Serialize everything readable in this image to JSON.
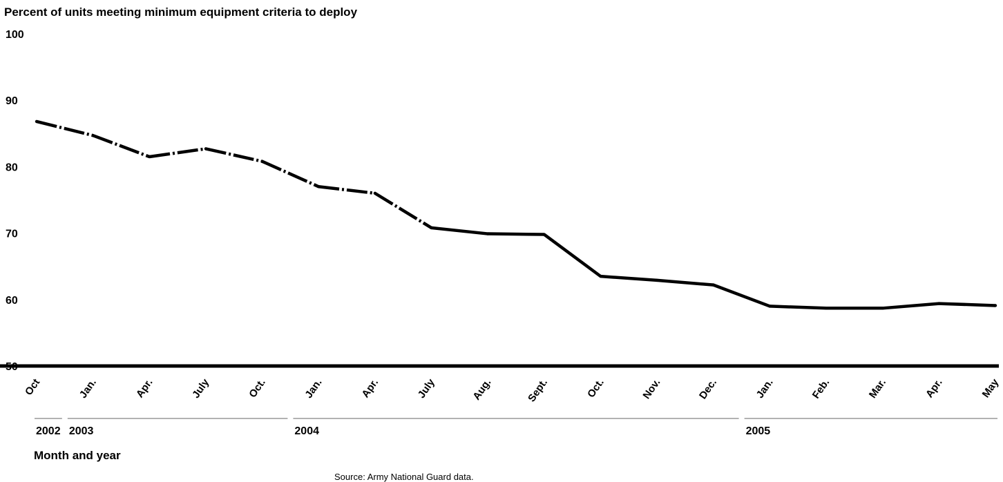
{
  "chart_data": {
    "type": "line",
    "title": "Percent of units meeting minimum equipment criteria to deploy",
    "xlabel": "Month and year",
    "ylabel": "",
    "ylim": [
      50,
      100
    ],
    "yticks": [
      "100",
      "90",
      "80",
      "70",
      "60",
      "50"
    ],
    "categories": [
      "Oct",
      "Jan.",
      "Apr.",
      "July",
      "Oct.",
      "Jan.",
      "Apr.",
      "July",
      "Aug.",
      "Sept.",
      "Oct.",
      "Nov.",
      "Dec.",
      "Jan.",
      "Feb.",
      "Mar.",
      "Apr.",
      "May"
    ],
    "years": [
      {
        "label": "2002",
        "from": 0,
        "to": 0
      },
      {
        "label": "2003",
        "from": 1,
        "to": 4
      },
      {
        "label": "2004",
        "from": 5,
        "to": 12
      },
      {
        "label": "2005",
        "from": 13,
        "to": 17
      }
    ],
    "series": [
      {
        "values": [
          86.8,
          84.7,
          81.5,
          82.7,
          80.8,
          77.0,
          76.0,
          70.8,
          69.9,
          69.8,
          63.5,
          62.9,
          62.2,
          59.0,
          58.7,
          58.7,
          59.4,
          59.1
        ],
        "dashed_segments": [
          0,
          1,
          2,
          3,
          4,
          5,
          6
        ]
      }
    ],
    "source": "Source: Army National Guard data.",
    "grid": false,
    "legend": "none",
    "colors": {
      "line": "#000000",
      "year_rule": "#999999"
    }
  }
}
